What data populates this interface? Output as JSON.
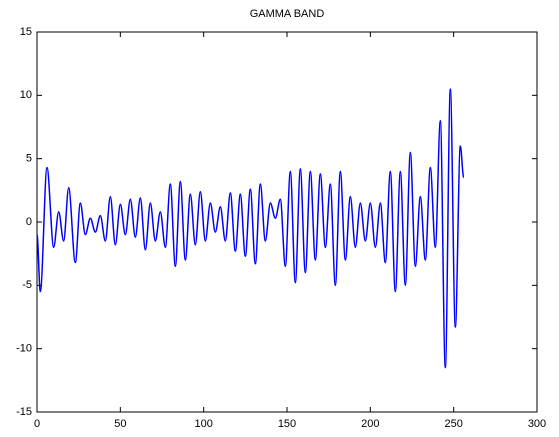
{
  "chart_data": {
    "type": "line",
    "title": "GAMMA BAND",
    "x": [
      0,
      2,
      6,
      10,
      13,
      16,
      19,
      23,
      26,
      29,
      32,
      35,
      38,
      41,
      44,
      47,
      50,
      53,
      56,
      59,
      62,
      65,
      68,
      71,
      74,
      77,
      80,
      83,
      86,
      89,
      92,
      95,
      98,
      101,
      104,
      107,
      110,
      113,
      116,
      119,
      122,
      125,
      128,
      131,
      134,
      137,
      140,
      143,
      146,
      149,
      152,
      155,
      158,
      161,
      164,
      167,
      170,
      173,
      176,
      179,
      182,
      185,
      188,
      191,
      194,
      197,
      200,
      203,
      206,
      209,
      212,
      215,
      218,
      221,
      224,
      227,
      230,
      233,
      236,
      239,
      242,
      245,
      248,
      251,
      254,
      256
    ],
    "series": [
      {
        "color": "#0000ff",
        "values": [
          -1,
          -5.5,
          4.3,
          -2,
          0.8,
          -1.5,
          2.7,
          -3.2,
          1.5,
          -1,
          0.3,
          -0.8,
          0.5,
          -1.5,
          2,
          -1.8,
          1.4,
          -1.0,
          1.8,
          -1.2,
          1.9,
          -2.2,
          1.5,
          -1.5,
          0.8,
          -2,
          3,
          -3.5,
          3.2,
          -3,
          2.2,
          -1.8,
          2.4,
          -1.5,
          1.5,
          -0.8,
          1.2,
          -1.5,
          2.3,
          -2.3,
          2.2,
          -2.7,
          2.6,
          -3.3,
          3,
          -1.5,
          1.5,
          0.3,
          1.8,
          -3.5,
          4,
          -4.8,
          4.2,
          -4,
          4,
          -3,
          3.8,
          -2,
          3,
          -5,
          4,
          -3,
          2,
          -2,
          1.5,
          -1.5,
          1.5,
          -2,
          1.5,
          -3.2,
          4,
          -5.5,
          4,
          -5,
          5.5,
          -3.5,
          2,
          -3,
          4.3,
          -2,
          8,
          -11.5,
          10.5,
          -8.3,
          6,
          3.5
        ]
      }
    ],
    "xlim": [
      0,
      300
    ],
    "xticks": [
      0,
      50,
      100,
      150,
      200,
      250,
      300
    ],
    "ylim": [
      -15,
      15
    ],
    "yticks": [
      -15,
      -10,
      -5,
      0,
      5,
      10,
      15
    ]
  }
}
